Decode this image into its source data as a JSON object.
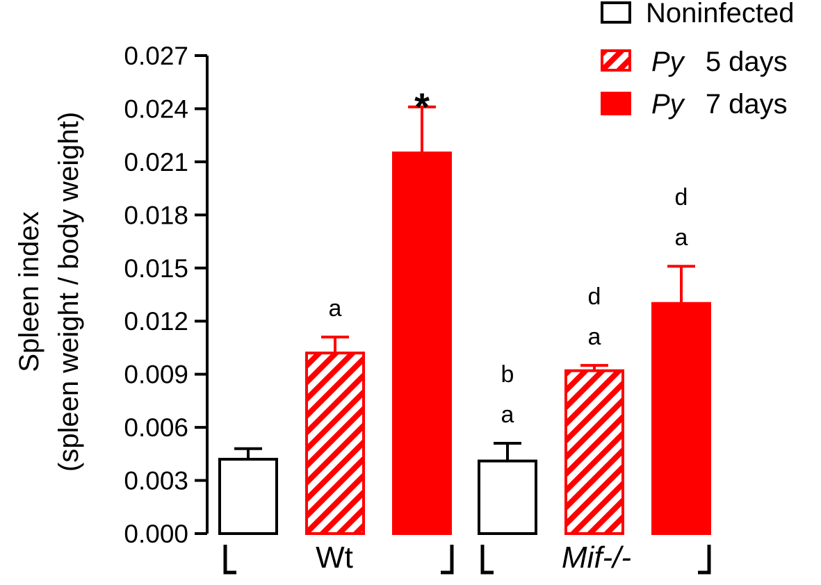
{
  "chart_data": {
    "type": "bar",
    "ylabel_line1": "Spleen index",
    "ylabel_line2": "(spleen weight / body weight)",
    "ylim": [
      0,
      0.027
    ],
    "yticks": [
      "0.000",
      "0.003",
      "0.006",
      "0.009",
      "0.012",
      "0.015",
      "0.018",
      "0.021",
      "0.024",
      "0.027"
    ],
    "groups": [
      {
        "label": "Wt",
        "italic": false
      },
      {
        "label": "Mif-/-",
        "italic": true
      }
    ],
    "series": [
      {
        "name": "Noninfected",
        "prefix": "",
        "suffix": "Noninfected",
        "style": "open",
        "color": "#000000",
        "values": [
          0.0042,
          0.0041
        ],
        "errors": [
          0.0006,
          0.001
        ]
      },
      {
        "name": "Py 5 days",
        "prefix": "Py",
        "suffix": "5 days",
        "style": "hatched",
        "color": "#ff0000",
        "values": [
          0.0102,
          0.0092
        ],
        "errors": [
          0.0009,
          0.0003
        ]
      },
      {
        "name": "Py 7 days",
        "prefix": "Py",
        "suffix": "7 days",
        "style": "filled",
        "color": "#ff0000",
        "values": [
          0.0215,
          0.013
        ],
        "errors": [
          0.0026,
          0.0021
        ]
      }
    ],
    "annotations": [
      {
        "group": 0,
        "series": 1,
        "letters": [
          "a"
        ]
      },
      {
        "group": 0,
        "series": 2,
        "letters": [
          "*"
        ]
      },
      {
        "group": 1,
        "series": 0,
        "letters": [
          "b",
          "a"
        ]
      },
      {
        "group": 1,
        "series": 1,
        "letters": [
          "d",
          "a"
        ]
      },
      {
        "group": 1,
        "series": 2,
        "letters": [
          "d",
          "a"
        ]
      }
    ]
  }
}
